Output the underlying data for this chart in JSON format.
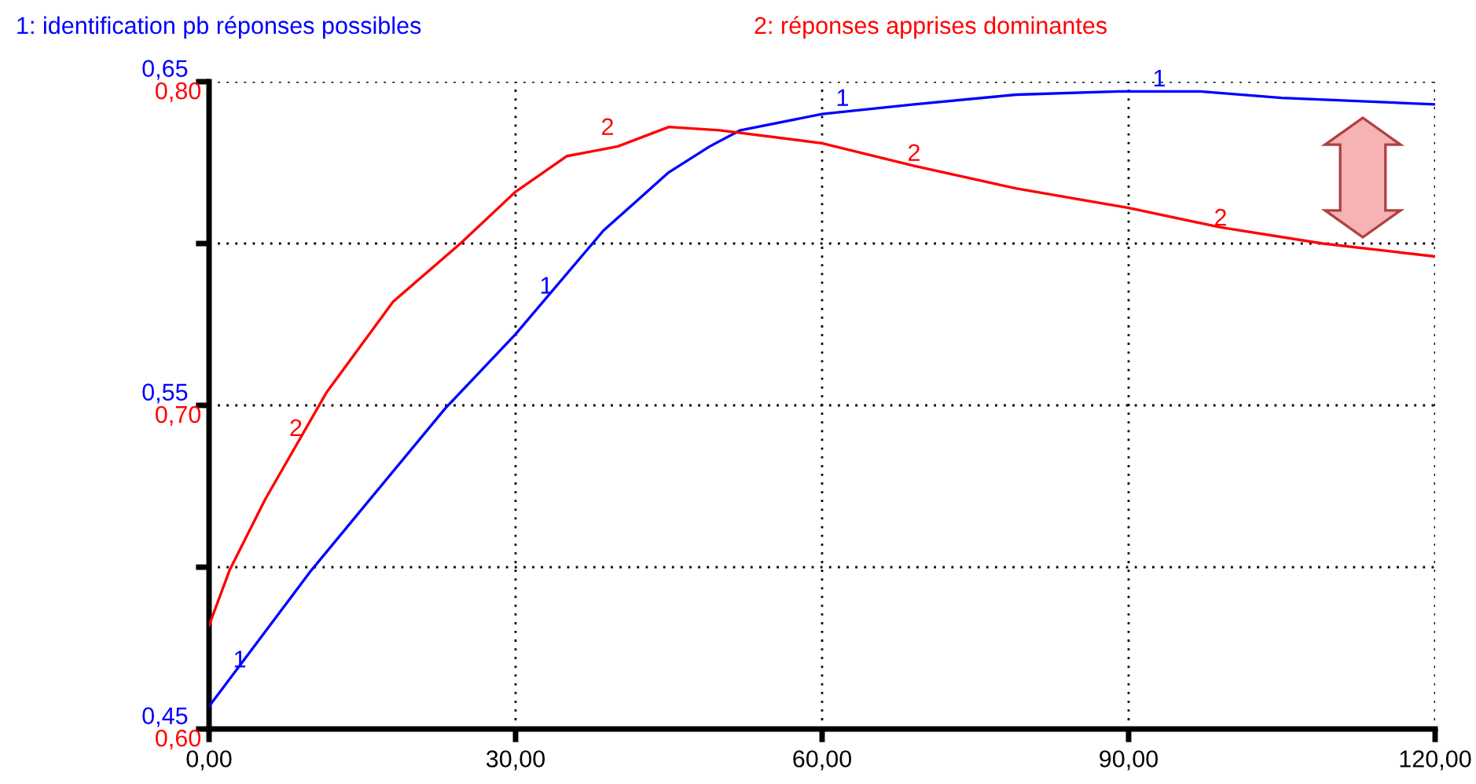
{
  "chart_data": {
    "type": "line",
    "x": [
      0,
      10,
      23.1,
      30,
      38.6,
      45,
      49,
      52,
      60,
      69,
      79,
      89,
      97,
      105,
      120
    ],
    "series": [
      {
        "name": "1: identification pb réponses possibles",
        "color": "#0000ff",
        "axis": "y",
        "values": [
          0.457,
          0.499,
          0.549,
          0.572,
          0.604,
          0.622,
          0.63,
          0.635,
          0.64,
          0.643,
          0.646,
          0.647,
          0.647,
          0.645,
          0.643
        ]
      },
      {
        "name": "2: réponses apprises dominantes",
        "color": "#ff0000",
        "axis": "y2",
        "x": [
          0,
          2,
          5.5,
          11.5,
          18,
          24.6,
          30,
          35,
          40,
          45,
          50,
          60,
          69,
          79,
          90,
          99,
          109,
          120
        ],
        "values": [
          0.632,
          0.649,
          0.671,
          0.704,
          0.732,
          0.75,
          0.766,
          0.777,
          0.78,
          0.786,
          0.785,
          0.781,
          0.774,
          0.767,
          0.761,
          0.755,
          0.75,
          0.746
        ]
      }
    ],
    "annotations": [
      {
        "text": "1",
        "x": 3,
        "y": 0.4675
      },
      {
        "text": "1",
        "x": 33,
        "y": 0.583
      },
      {
        "text": "1",
        "x": 62,
        "y": 0.641
      },
      {
        "text": "1",
        "x": 93,
        "y": 0.647
      },
      {
        "text": "2",
        "x": 8.5,
        "y": 0.539
      },
      {
        "text": "2",
        "x": 39,
        "y": 0.632
      },
      {
        "text": "2",
        "x": 69,
        "y": 0.624
      },
      {
        "text": "2",
        "x": 99,
        "y": 0.604
      }
    ],
    "xlim": [
      0,
      120
    ],
    "xticks": [
      {
        "value": 0,
        "label": "0,00"
      },
      {
        "value": 30,
        "label": "30,00"
      },
      {
        "value": 60,
        "label": "60,00"
      },
      {
        "value": 90,
        "label": "90,00"
      },
      {
        "value": 120,
        "label": "120,00"
      }
    ],
    "ylim": [
      0.45,
      0.65
    ],
    "yticks": [
      {
        "value": 0.45,
        "label": "0,45"
      },
      {
        "value": 0.5,
        "label": null
      },
      {
        "value": 0.55,
        "label": "0,55"
      },
      {
        "value": 0.6,
        "label": null
      },
      {
        "value": 0.65,
        "label": "0,65"
      }
    ],
    "y2lim": [
      0.6,
      0.8
    ],
    "y2ticks": [
      {
        "value": 0.6,
        "label": "0,60"
      },
      {
        "value": 0.65,
        "label": null
      },
      {
        "value": 0.7,
        "label": "0,70"
      },
      {
        "value": 0.75,
        "label": null
      },
      {
        "value": 0.8,
        "label": "0,80"
      }
    ],
    "grid": true,
    "legend": "top",
    "line_style": "solid",
    "marker": "none"
  }
}
